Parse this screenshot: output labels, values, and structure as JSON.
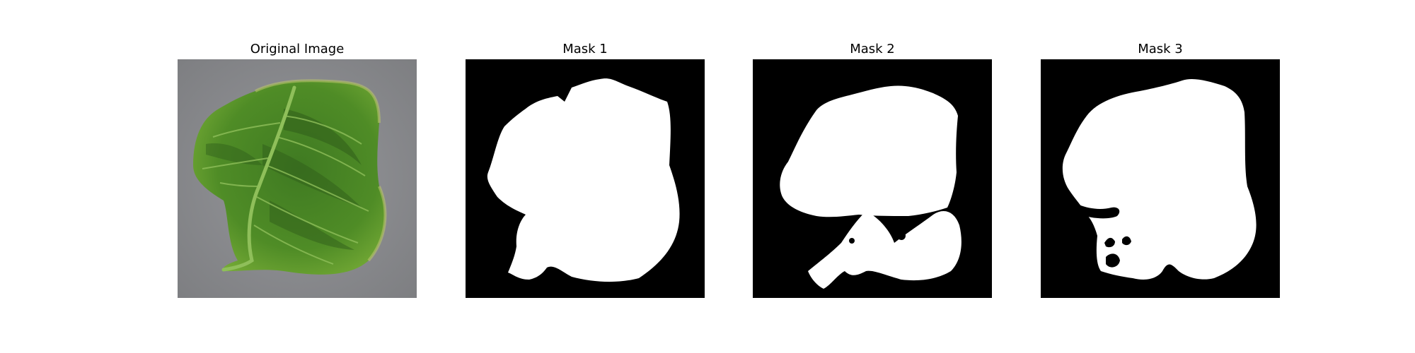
{
  "figure": {
    "background": "#ffffff",
    "panels": [
      {
        "title": "Original Image",
        "content": "leaf photograph",
        "colors": {
          "backdrop": "#8c8d90",
          "leaf": "#4f8c26",
          "vein": "#8fbf5a"
        }
      },
      {
        "title": "Mask 1",
        "content": "binary mask",
        "colors": {
          "background": "#000000",
          "foreground": "#ffffff"
        }
      },
      {
        "title": "Mask 2",
        "content": "binary mask",
        "colors": {
          "background": "#000000",
          "foreground": "#ffffff"
        }
      },
      {
        "title": "Mask 3",
        "content": "binary mask",
        "colors": {
          "background": "#000000",
          "foreground": "#ffffff"
        }
      }
    ]
  }
}
